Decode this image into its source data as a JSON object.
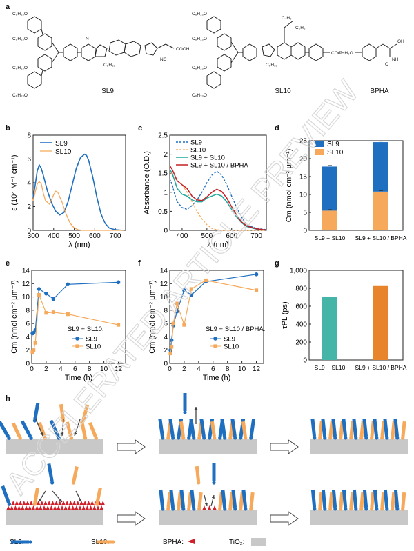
{
  "panel_labels": {
    "a": "a",
    "b": "b",
    "c": "c",
    "d": "d",
    "e": "e",
    "f": "f",
    "g": "g",
    "h": "h"
  },
  "molecules": {
    "sl9": "SL9",
    "sl10": "SL10",
    "bpha": "BPHA"
  },
  "colors": {
    "sl9": "#1f6fc0",
    "sl10": "#f6a95a",
    "mix": "#20a89a",
    "mixbpha": "#c42026",
    "teal_bar": "#45b5a8",
    "orange_bar": "#e8842b",
    "substrate": "#c8c8c8",
    "bpha": "#d0202a"
  },
  "chart_data": [
    {
      "panel": "b",
      "type": "line",
      "xlabel": "λ (nm)",
      "ylabel": "ε (10⁴ M⁻¹ cm⁻¹)",
      "xlim": [
        300,
        750
      ],
      "ylim": [
        0,
        8
      ],
      "xticks": [
        300,
        400,
        500,
        600,
        700
      ],
      "yticks": [
        0,
        2,
        4,
        6,
        8
      ],
      "series": [
        {
          "name": "SL9",
          "x": [
            300,
            310,
            320,
            330,
            340,
            350,
            370,
            390,
            410,
            430,
            450,
            470,
            490,
            510,
            530,
            550,
            560,
            570,
            590,
            610,
            630,
            650,
            670,
            700,
            740
          ],
          "y": [
            2.8,
            3.8,
            5.0,
            5.5,
            5.2,
            4.6,
            3.3,
            2.3,
            1.6,
            1.3,
            1.5,
            2.4,
            3.8,
            5.2,
            6.1,
            6.4,
            6.3,
            5.9,
            4.5,
            2.8,
            1.4,
            0.6,
            0.2,
            0.05,
            0
          ]
        },
        {
          "name": "SL10",
          "x": [
            300,
            310,
            320,
            330,
            340,
            350,
            360,
            380,
            400,
            410,
            420,
            440,
            460,
            480,
            500,
            520,
            540,
            560,
            600,
            650,
            740
          ],
          "y": [
            2.5,
            3.2,
            3.9,
            4.1,
            3.9,
            3.1,
            2.5,
            2.2,
            3.0,
            3.3,
            3.2,
            2.4,
            1.4,
            0.6,
            0.2,
            0.05,
            0,
            0,
            0,
            0,
            0
          ]
        }
      ]
    },
    {
      "panel": "c",
      "type": "line",
      "xlabel": "λ (nm)",
      "ylabel": "Absorbance (O.D.)",
      "xlim": [
        350,
        740
      ],
      "ylim": [
        0,
        2.5
      ],
      "xticks": [
        400,
        500,
        600,
        700
      ],
      "yticks": [
        0,
        0.5,
        1,
        1.5,
        2,
        2.5
      ],
      "series": [
        {
          "name": "SL9",
          "x": [
            350,
            360,
            370,
            380,
            400,
            420,
            440,
            460,
            480,
            500,
            520,
            540,
            560,
            580,
            600,
            620,
            640,
            660,
            700,
            740
          ],
          "y": [
            1.35,
            1.2,
            0.95,
            0.75,
            0.6,
            0.55,
            0.65,
            0.8,
            1.0,
            1.25,
            1.45,
            1.55,
            1.45,
            1.2,
            0.9,
            0.6,
            0.35,
            0.15,
            0.05,
            0.02
          ]
        },
        {
          "name": "SL10",
          "x": [
            350,
            360,
            380,
            400,
            420,
            440,
            460,
            480,
            500,
            520,
            540,
            560,
            600,
            650,
            700,
            740
          ],
          "y": [
            1.6,
            1.45,
            1.3,
            1.2,
            1.0,
            0.75,
            0.5,
            0.3,
            0.15,
            0.05,
            0.02,
            0,
            0,
            0,
            0,
            0
          ]
        },
        {
          "name": "SL9 + SL10",
          "x": [
            350,
            360,
            380,
            400,
            420,
            440,
            460,
            480,
            500,
            520,
            540,
            560,
            580,
            600,
            620,
            640,
            660,
            700,
            740
          ],
          "y": [
            1.6,
            1.5,
            1.1,
            0.95,
            0.9,
            0.8,
            0.75,
            0.75,
            0.85,
            0.9,
            0.95,
            0.9,
            0.75,
            0.55,
            0.35,
            0.2,
            0.1,
            0.03,
            0.01
          ]
        },
        {
          "name": "SL9 + SL10 / BPHA",
          "x": [
            350,
            360,
            380,
            400,
            420,
            440,
            460,
            480,
            500,
            520,
            540,
            560,
            580,
            600,
            620,
            640,
            660,
            700,
            740
          ],
          "y": [
            1.7,
            1.6,
            1.3,
            1.2,
            1.1,
            0.9,
            0.8,
            0.78,
            0.88,
            1.0,
            1.08,
            1.02,
            0.85,
            0.62,
            0.4,
            0.22,
            0.12,
            0.04,
            0.01
          ]
        }
      ]
    },
    {
      "panel": "d",
      "type": "bar",
      "ylabel": "Cm (nmol cm⁻² μm⁻¹)",
      "categories": [
        "SL9 + SL10",
        "SL9 + SL10 / BPHA"
      ],
      "ylim": [
        0,
        25
      ],
      "yticks": [
        0,
        5,
        10,
        15,
        20,
        25
      ],
      "series": [
        {
          "name": "SL10",
          "values": [
            5.5,
            10.8
          ]
        },
        {
          "name": "SL9",
          "values": [
            12.3,
            13.8
          ]
        }
      ]
    },
    {
      "panel": "e",
      "type": "line",
      "xlabel": "Time (h)",
      "ylabel": "Cm (nmol cm⁻² μm⁻¹)",
      "legend_title": "SL9 + SL10:",
      "xlim": [
        0,
        13
      ],
      "ylim": [
        0,
        14
      ],
      "xticks": [
        0,
        2,
        4,
        6,
        8,
        10,
        12
      ],
      "yticks": [
        0,
        2,
        4,
        6,
        8,
        10,
        12,
        14
      ],
      "series": [
        {
          "name": "SL9",
          "x": [
            0.1,
            0.25,
            0.5,
            1,
            2,
            3,
            5,
            12
          ],
          "y": [
            4.5,
            4.6,
            5.0,
            11.2,
            10.5,
            9.7,
            11.9,
            12.2
          ]
        },
        {
          "name": "SL10",
          "x": [
            0.1,
            0.25,
            0.5,
            1,
            2,
            3,
            5,
            12
          ],
          "y": [
            1.7,
            2.0,
            3.1,
            10.3,
            7.6,
            7.7,
            7.4,
            5.8
          ]
        }
      ]
    },
    {
      "panel": "f",
      "type": "line",
      "xlabel": "Time (h)",
      "ylabel": "Cm (nmol cm⁻² μm⁻¹)",
      "legend_title": "SL9 + SL10 / BPHA:",
      "xlim": [
        0,
        13
      ],
      "ylim": [
        0,
        14
      ],
      "xticks": [
        0,
        2,
        4,
        6,
        8,
        10,
        12
      ],
      "yticks": [
        0,
        2,
        4,
        6,
        8,
        10,
        12,
        14
      ],
      "series": [
        {
          "name": "SL9",
          "x": [
            0.1,
            0.25,
            0.5,
            1,
            2,
            3,
            5,
            12
          ],
          "y": [
            2.0,
            3.5,
            5.7,
            7.8,
            11.0,
            10.3,
            12.3,
            13.4
          ]
        },
        {
          "name": "SL10",
          "x": [
            0.1,
            0.25,
            0.5,
            1,
            2,
            3,
            5,
            12
          ],
          "y": [
            1.5,
            2.5,
            6.0,
            9.0,
            5.8,
            11.2,
            12.5,
            11.0
          ]
        }
      ]
    },
    {
      "panel": "g",
      "type": "bar",
      "ylabel": "τPL (ps)",
      "categories": [
        "SL9 + SL10",
        "SL9 + SL10 / BPHA"
      ],
      "ylim": [
        0,
        1000
      ],
      "yticks": [
        "0",
        "200",
        "400",
        "600",
        "800",
        "1,000"
      ],
      "values": [
        700,
        825
      ]
    }
  ],
  "legend_h": {
    "sl9": "SL9:",
    "sl10": "SL10:",
    "bpha": "BPHA:",
    "tio2": "TiO₂:"
  },
  "watermark": "ACCELERATED ARTICLE PREVIEW"
}
